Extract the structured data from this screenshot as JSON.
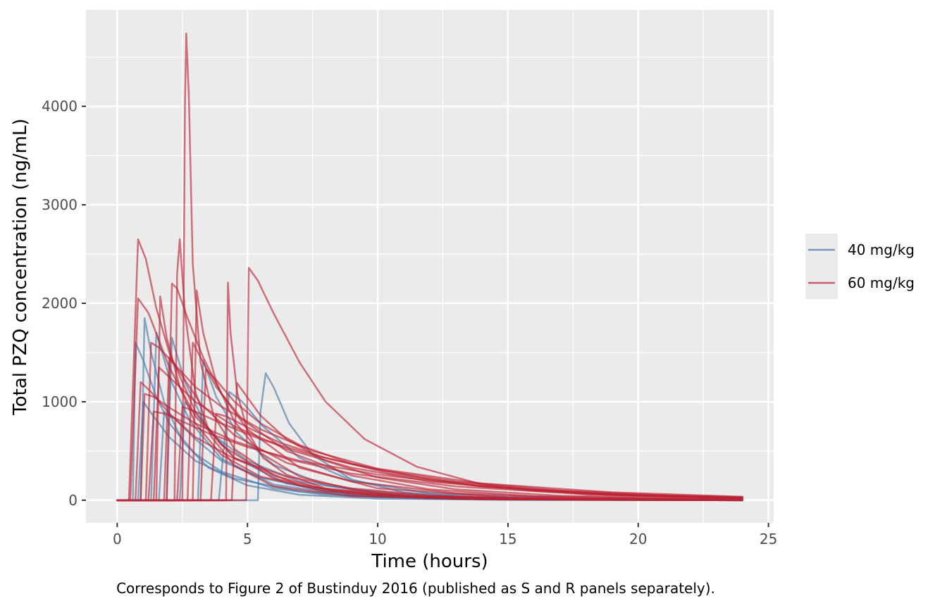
{
  "chart_data": {
    "type": "line",
    "title": "",
    "xlabel": "Time (hours)",
    "ylabel": "Total PZQ concentration (ng/mL)",
    "caption": "Corresponds to Figure 2 of Bustinduy 2016 (published as S and R panels separately).",
    "xlim": [
      -1.2,
      25.2
    ],
    "ylim": [
      -230,
      4980
    ],
    "x_ticks": [
      0,
      5,
      10,
      15,
      20,
      25
    ],
    "y_ticks": [
      0,
      1000,
      2000,
      3000,
      4000
    ],
    "x_tick_labels": [
      "0",
      "5",
      "10",
      "15",
      "20",
      "25"
    ],
    "y_tick_labels": [
      "0",
      "1000",
      "2000",
      "3000",
      "4000"
    ],
    "grid": true,
    "legend_position": "right",
    "legend": [
      {
        "label": "40 mg/kg",
        "color": "#4477aa"
      },
      {
        "label": "60 mg/kg",
        "color": "#bb2233"
      }
    ],
    "series": [
      {
        "group": "40 mg/kg",
        "x": [
          0,
          0.6,
          0.7,
          1,
          1.5,
          2,
          3,
          4,
          6,
          8,
          12,
          18,
          24
        ],
        "y": [
          0,
          0,
          1600,
          1420,
          1050,
          780,
          470,
          290,
          120,
          55,
          14,
          4,
          1
        ]
      },
      {
        "group": "40 mg/kg",
        "x": [
          0,
          0.9,
          1.05,
          1.3,
          1.8,
          2.5,
          3.5,
          5,
          7,
          10,
          15,
          24
        ],
        "y": [
          0,
          0,
          1850,
          1500,
          1000,
          600,
          330,
          150,
          55,
          15,
          3,
          0
        ]
      },
      {
        "group": "40 mg/kg",
        "x": [
          0,
          1.3,
          1.5,
          2,
          2.8,
          4,
          6,
          9,
          13,
          24
        ],
        "y": [
          0,
          0,
          1700,
          1250,
          800,
          420,
          160,
          45,
          10,
          0
        ]
      },
      {
        "group": "40 mg/kg",
        "x": [
          0,
          1.9,
          2.1,
          2.6,
          3.4,
          4.5,
          6.5,
          9,
          14,
          24
        ],
        "y": [
          0,
          0,
          1650,
          1200,
          760,
          430,
          170,
          55,
          8,
          0
        ]
      },
      {
        "group": "40 mg/kg",
        "x": [
          0,
          3.1,
          3.3,
          3.8,
          4.6,
          6,
          8,
          11,
          16,
          24
        ],
        "y": [
          0,
          0,
          1420,
          1050,
          680,
          360,
          150,
          45,
          8,
          0
        ]
      },
      {
        "group": "40 mg/kg",
        "x": [
          0,
          5.4,
          5.5,
          5.7,
          6,
          6.6,
          7.5,
          9,
          11,
          14,
          19,
          24
        ],
        "y": [
          0,
          0,
          900,
          1290,
          1150,
          780,
          460,
          210,
          80,
          25,
          5,
          1
        ]
      },
      {
        "group": "40 mg/kg",
        "x": [
          0,
          3.9,
          4.3,
          4.8,
          5.6,
          7,
          9,
          12,
          17,
          24
        ],
        "y": [
          0,
          0,
          1100,
          1000,
          750,
          430,
          200,
          70,
          15,
          2
        ]
      },
      {
        "group": "40 mg/kg",
        "x": [
          0,
          0.8,
          1,
          1.4,
          2,
          3,
          4.5,
          7,
          10,
          15,
          24
        ],
        "y": [
          0,
          0,
          1000,
          850,
          640,
          400,
          220,
          90,
          30,
          6,
          0
        ]
      },
      {
        "group": "40 mg/kg",
        "x": [
          0,
          1.6,
          1.8,
          2.2,
          3,
          4,
          5.5,
          8,
          12,
          18,
          24
        ],
        "y": [
          0,
          0,
          900,
          830,
          620,
          400,
          230,
          90,
          25,
          5,
          1
        ]
      },
      {
        "group": "40 mg/kg",
        "x": [
          0,
          2.4,
          2.6,
          3,
          3.8,
          5,
          7,
          10,
          15,
          24
        ],
        "y": [
          0,
          0,
          1000,
          880,
          640,
          400,
          190,
          70,
          15,
          1
        ]
      },
      {
        "group": "60 mg/kg",
        "x": [
          0,
          0.45,
          0.8,
          1.1,
          1.5,
          2,
          3,
          4,
          6,
          9,
          13,
          18,
          24
        ],
        "y": [
          0,
          0,
          2650,
          2450,
          1950,
          1500,
          900,
          560,
          220,
          60,
          15,
          3,
          0
        ]
      },
      {
        "group": "60 mg/kg",
        "x": [
          0,
          0.5,
          0.8,
          1.2,
          2,
          3,
          4.5,
          7,
          10,
          15,
          24
        ],
        "y": [
          0,
          0,
          2050,
          1900,
          1350,
          850,
          430,
          150,
          45,
          8,
          0
        ]
      },
      {
        "group": "60 mg/kg",
        "x": [
          0,
          2.5,
          2.6,
          2.65,
          2.75,
          2.9,
          3.2,
          3.7,
          4.5,
          6,
          8,
          12,
          18,
          24
        ],
        "y": [
          0,
          0,
          4000,
          4740,
          4100,
          2400,
          1400,
          860,
          520,
          250,
          110,
          30,
          6,
          1
        ]
      },
      {
        "group": "60 mg/kg",
        "x": [
          0,
          2.2,
          2.3,
          2.4,
          2.6,
          3,
          3.6,
          4.5,
          6,
          9,
          14,
          24
        ],
        "y": [
          0,
          0,
          2300,
          2650,
          1900,
          1100,
          650,
          350,
          140,
          40,
          8,
          0
        ]
      },
      {
        "group": "60 mg/kg",
        "x": [
          0,
          1.9,
          2.1,
          2.3,
          2.7,
          3.3,
          4,
          5,
          7,
          10,
          15,
          24
        ],
        "y": [
          0,
          0,
          2200,
          2150,
          1850,
          1450,
          1080,
          720,
          330,
          120,
          30,
          3
        ]
      },
      {
        "group": "60 mg/kg",
        "x": [
          0,
          1.5,
          1.65,
          1.9,
          2.4,
          3,
          4,
          5.5,
          8,
          12,
          18,
          24
        ],
        "y": [
          0,
          0,
          2070,
          1650,
          1150,
          780,
          460,
          240,
          90,
          25,
          5,
          1
        ]
      },
      {
        "group": "60 mg/kg",
        "x": [
          0,
          2.9,
          3.05,
          3.3,
          3.8,
          4.5,
          5.5,
          7,
          9,
          12,
          17,
          24
        ],
        "y": [
          0,
          0,
          2130,
          1700,
          1200,
          800,
          480,
          240,
          110,
          40,
          10,
          1
        ]
      },
      {
        "group": "60 mg/kg",
        "x": [
          0,
          4.18,
          4.25,
          4.35,
          4.6,
          5,
          5.6,
          6.5,
          8,
          11,
          16,
          24
        ],
        "y": [
          0,
          0,
          2210,
          1700,
          1100,
          700,
          430,
          260,
          120,
          40,
          10,
          1
        ]
      },
      {
        "group": "60 mg/kg",
        "x": [
          0,
          4.95,
          5.05,
          5.4,
          6,
          7,
          8,
          9.5,
          11.5,
          14,
          18,
          24
        ],
        "y": [
          0,
          0,
          2360,
          2230,
          1900,
          1400,
          1000,
          620,
          340,
          160,
          60,
          15
        ]
      },
      {
        "group": "60 mg/kg",
        "x": [
          0,
          4.4,
          4.6,
          4.9,
          5.5,
          6.5,
          8,
          10,
          13,
          17,
          24
        ],
        "y": [
          0,
          0,
          1190,
          1080,
          860,
          620,
          400,
          230,
          110,
          45,
          12
        ]
      },
      {
        "group": "60 mg/kg",
        "x": [
          0,
          1.1,
          1.3,
          1.6,
          2.2,
          3,
          4,
          5.5,
          7.5,
          10,
          14,
          19,
          24
        ],
        "y": [
          0,
          0,
          1600,
          1550,
          1380,
          1150,
          950,
          720,
          500,
          320,
          170,
          80,
          35
        ]
      },
      {
        "group": "60 mg/kg",
        "x": [
          0,
          1.4,
          1.6,
          2,
          3,
          4.5,
          6.5,
          9,
          12,
          16,
          20,
          24
        ],
        "y": [
          0,
          0,
          1350,
          1250,
          1000,
          750,
          520,
          330,
          190,
          95,
          45,
          22
        ]
      },
      {
        "group": "60 mg/kg",
        "x": [
          0,
          0.9,
          1.05,
          1.4,
          2,
          3,
          4.5,
          6.5,
          9,
          13,
          18,
          24
        ],
        "y": [
          0,
          0,
          1080,
          1050,
          940,
          780,
          600,
          420,
          270,
          140,
          60,
          22
        ]
      },
      {
        "group": "60 mg/kg",
        "x": [
          0,
          2.7,
          2.9,
          3.2,
          3.8,
          4.8,
          6.5,
          9,
          12,
          16,
          24
        ],
        "y": [
          0,
          0,
          1600,
          1450,
          1150,
          820,
          500,
          250,
          110,
          40,
          5
        ]
      },
      {
        "group": "60 mg/kg",
        "x": [
          0,
          1.8,
          2,
          2.4,
          3.2,
          4.5,
          6.5,
          9,
          13,
          18,
          24
        ],
        "y": [
          0,
          0,
          1450,
          1300,
          980,
          660,
          380,
          190,
          70,
          20,
          3
        ]
      },
      {
        "group": "60 mg/kg",
        "x": [
          0,
          3.2,
          3.4,
          3.8,
          4.5,
          5.5,
          7,
          9,
          12,
          16,
          20,
          24
        ],
        "y": [
          0,
          0,
          1330,
          1220,
          1000,
          780,
          560,
          370,
          210,
          100,
          50,
          25
        ]
      },
      {
        "group": "60 mg/kg",
        "x": [
          0,
          2.3,
          2.5,
          3,
          4,
          5.5,
          7.5,
          10,
          13,
          17,
          21,
          24
        ],
        "y": [
          0,
          0,
          950,
          900,
          780,
          620,
          460,
          310,
          190,
          100,
          50,
          30
        ]
      },
      {
        "group": "60 mg/kg",
        "x": [
          0,
          1.2,
          1.4,
          1.8,
          2.5,
          3.5,
          5,
          7,
          10,
          14,
          19,
          24
        ],
        "y": [
          0,
          0,
          900,
          880,
          800,
          680,
          540,
          400,
          260,
          140,
          65,
          30
        ]
      },
      {
        "group": "60 mg/kg",
        "x": [
          0,
          0.7,
          0.9,
          1.3,
          2,
          3,
          4.5,
          6.5,
          9,
          12,
          16,
          24
        ],
        "y": [
          0,
          0,
          1200,
          1100,
          880,
          640,
          420,
          240,
          120,
          50,
          15,
          2
        ]
      },
      {
        "group": "60 mg/kg",
        "x": [
          0,
          3.6,
          3.8,
          4.2,
          5,
          6.2,
          8,
          10.5,
          14,
          19,
          24
        ],
        "y": [
          0,
          0,
          880,
          850,
          740,
          590,
          430,
          270,
          140,
          55,
          22
        ]
      }
    ]
  }
}
